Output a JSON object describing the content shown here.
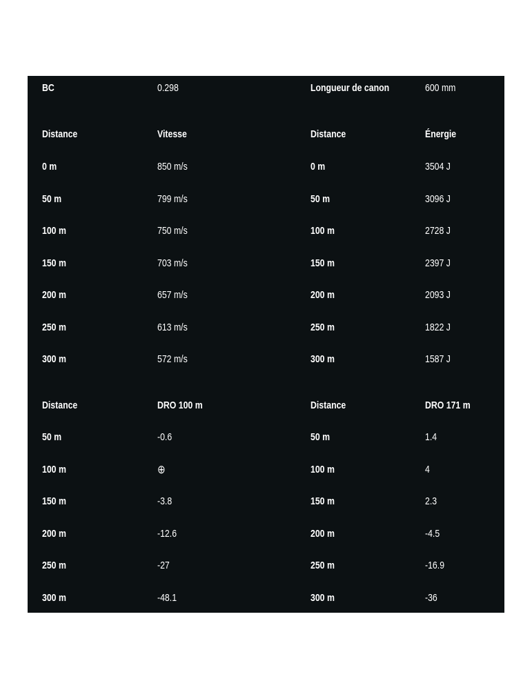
{
  "spec": {
    "bc_label": "BC",
    "bc_value": "0.298",
    "barrel_label": "Longueur de canon",
    "barrel_value": "600 mm"
  },
  "velocity_energy": {
    "headers": [
      "Distance",
      "Vitesse",
      "Distance",
      "Énergie"
    ],
    "rows": [
      [
        "0 m",
        "850 m/s",
        "0 m",
        "3504 J"
      ],
      [
        "50 m",
        "799 m/s",
        "50 m",
        "3096 J"
      ],
      [
        "100 m",
        "750 m/s",
        "100 m",
        "2728 J"
      ],
      [
        "150 m",
        "703 m/s",
        "150 m",
        "2397 J"
      ],
      [
        "200 m",
        "657 m/s",
        "200 m",
        "2093 J"
      ],
      [
        "250 m",
        "613 m/s",
        "250 m",
        "1822 J"
      ],
      [
        "300 m",
        "572 m/s",
        "300 m",
        "1587 J"
      ]
    ]
  },
  "drop": {
    "headers": [
      "Distance",
      "DRO 100 m",
      "Distance",
      "DRO 171 m"
    ],
    "rows": [
      [
        "50 m",
        "-0.6",
        "50 m",
        "1.4"
      ],
      [
        "100 m",
        "⊕",
        "100 m",
        "4"
      ],
      [
        "150 m",
        "-3.8",
        "150 m",
        "2.3"
      ],
      [
        "200 m",
        "-12.6",
        "200 m",
        "-4.5"
      ],
      [
        "250 m",
        "-27",
        "250 m",
        "-16.9"
      ],
      [
        "300 m",
        "-48.1",
        "300 m",
        "-36"
      ]
    ]
  },
  "colors": {
    "panel_bg": "#0c1113",
    "text": "#ffffff"
  }
}
